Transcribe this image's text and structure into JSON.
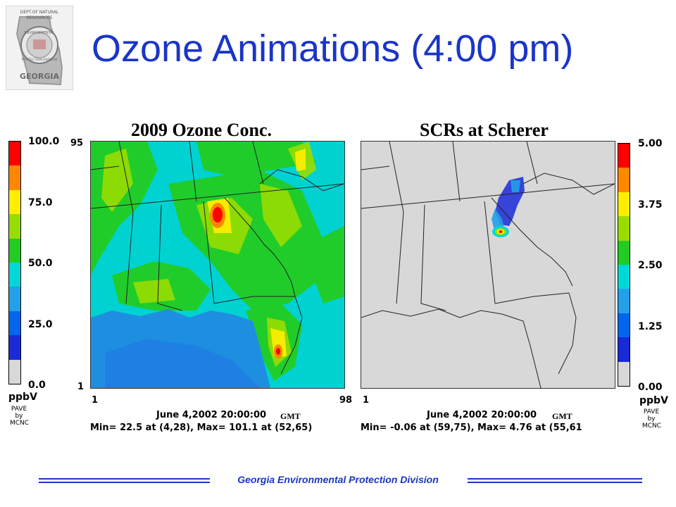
{
  "slide": {
    "title": "Ozone Animations (4:00 pm)",
    "footer": "Georgia Environmental Protection Division"
  },
  "logo": {
    "line1": "DEPT.OF NATURAL",
    "line2": "RESOURCES",
    "line3": "ENVIRONMENTAL",
    "line4": "PROTECTION DIVISION",
    "name": "GEORGIA"
  },
  "left_panel": {
    "title": "2009 Ozone Conc.",
    "scale_ticks": [
      "100.0",
      "75.0",
      "50.0",
      "25.0",
      "0.0"
    ],
    "colors": [
      "#ff0000",
      "#ff8800",
      "#ffee00",
      "#99dd00",
      "#22cc22",
      "#00d8d8",
      "#22a0e8",
      "#0066ee",
      "#1a2ad8",
      "#d8d8d8"
    ],
    "unit": "ppbV",
    "pave_lines": [
      "PAVE",
      "by",
      "MCNC"
    ],
    "grid_top": "95",
    "grid_bottom": "1",
    "grid_x_left": "1",
    "grid_x_right": "98",
    "timestamp": "June 4,2002 20:00:00",
    "gmt": "GMT",
    "stats": "Min=   22.5 at (4,28), Max=  101.1 at (52,65)"
  },
  "right_panel": {
    "title": "SCRs at Scherer",
    "scale_ticks": [
      "5.00",
      "3.75",
      "2.50",
      "1.25",
      "0.00"
    ],
    "colors": [
      "#ff0000",
      "#ff8800",
      "#ffee00",
      "#99dd00",
      "#22cc22",
      "#00d8d8",
      "#22a0e8",
      "#0066ee",
      "#1a2ad8",
      "#d8d8d8"
    ],
    "unit": "ppbV",
    "pave_lines": [
      "PAVE",
      "by",
      "MCNC"
    ],
    "grid_x_left": "1",
    "timestamp": "June 4,2002 20:00:00",
    "gmt": "GMT",
    "stats": "Min=  -0.06 at (59,75), Max=   4.76 at (55,61"
  }
}
